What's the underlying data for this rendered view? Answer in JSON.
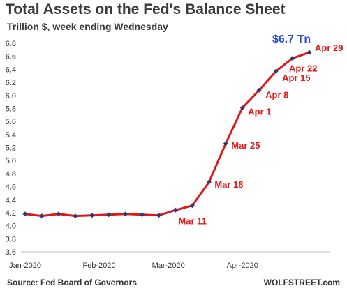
{
  "header": {
    "title": "Total Assets on the Fed's Balance Sheet",
    "subtitle": "Trillion $, week ending Wednesday"
  },
  "footer": {
    "source": "Source: Fed Board of Governors",
    "credit": "WOLFSTREET.com"
  },
  "colors": {
    "line": "#e01818",
    "marker": "#2e3b6e",
    "label": "#e01818",
    "callout": "#2a4fd6"
  },
  "chart_data": {
    "type": "line",
    "title": "Total Assets on the Fed's Balance Sheet",
    "subtitle": "Trillion $, week ending Wednesday",
    "x": [
      "2020-01-01",
      "2020-01-08",
      "2020-01-15",
      "2020-01-22",
      "2020-01-29",
      "2020-02-05",
      "2020-02-12",
      "2020-02-19",
      "2020-02-26",
      "2020-03-04",
      "2020-03-11",
      "2020-03-18",
      "2020-03-25",
      "2020-04-01",
      "2020-04-08",
      "2020-04-15",
      "2020-04-22",
      "2020-04-29"
    ],
    "values": [
      4.18,
      4.15,
      4.18,
      4.15,
      4.16,
      4.17,
      4.18,
      4.17,
      4.16,
      4.24,
      4.31,
      4.67,
      5.26,
      5.81,
      6.08,
      6.37,
      6.57,
      6.66
    ],
    "ylim": [
      3.6,
      6.8
    ],
    "yticks": [
      "3.6",
      "3.8",
      "4.0",
      "4.2",
      "4.4",
      "4.6",
      "4.8",
      "5.0",
      "5.2",
      "5.4",
      "5.6",
      "5.8",
      "6.0",
      "6.2",
      "6.4",
      "6.6",
      "6.8"
    ],
    "xtick_labels": [
      "Jan-2020",
      "Feb-2020",
      "Mar-2020",
      "Apr-2020"
    ],
    "point_labels": [
      {
        "index": 10,
        "text": "Mar 11"
      },
      {
        "index": 11,
        "text": "Mar 18"
      },
      {
        "index": 12,
        "text": "Mar 25"
      },
      {
        "index": 13,
        "text": "Apr 1"
      },
      {
        "index": 14,
        "text": "Apr 8"
      },
      {
        "index": 15,
        "text": "Apr 15"
      },
      {
        "index": 16,
        "text": "Apr 22"
      },
      {
        "index": 17,
        "text": "Apr 29"
      }
    ],
    "callout": "$6.7 Tn",
    "grid": false,
    "legend": "none"
  }
}
